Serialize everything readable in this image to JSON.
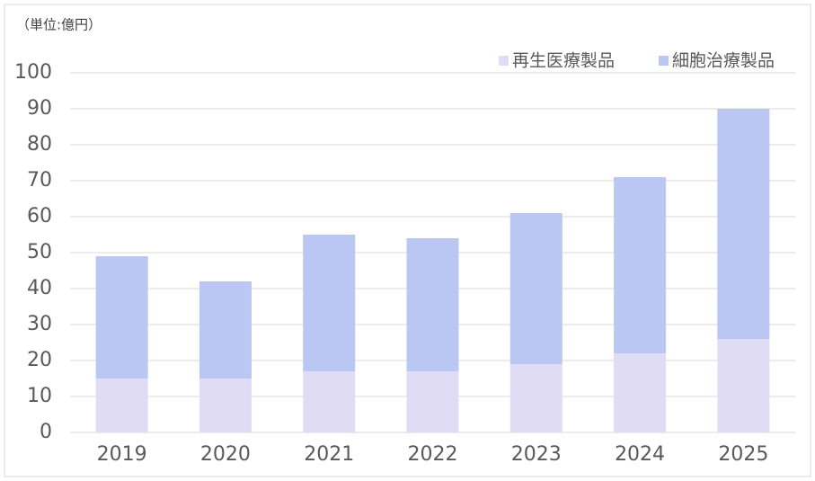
{
  "chart_data": {
    "type": "stacked_bar",
    "subtitle": "（単位:億円）",
    "categories": [
      "2019",
      "2020",
      "2021",
      "2022",
      "2023",
      "2024",
      "2025"
    ],
    "series": [
      {
        "name": "再生医療製品",
        "color": "#e0dcf6",
        "values": [
          15,
          15,
          17,
          17,
          19,
          22,
          26
        ]
      },
      {
        "name": "細胞治療製品",
        "color": "#b9c7f2",
        "values": [
          34,
          27,
          38,
          37,
          42,
          49,
          64
        ]
      }
    ],
    "ylim": [
      0,
      100
    ],
    "yticks": [
      0,
      10,
      20,
      30,
      40,
      50,
      60,
      70,
      80,
      90,
      100
    ],
    "grid": true
  }
}
